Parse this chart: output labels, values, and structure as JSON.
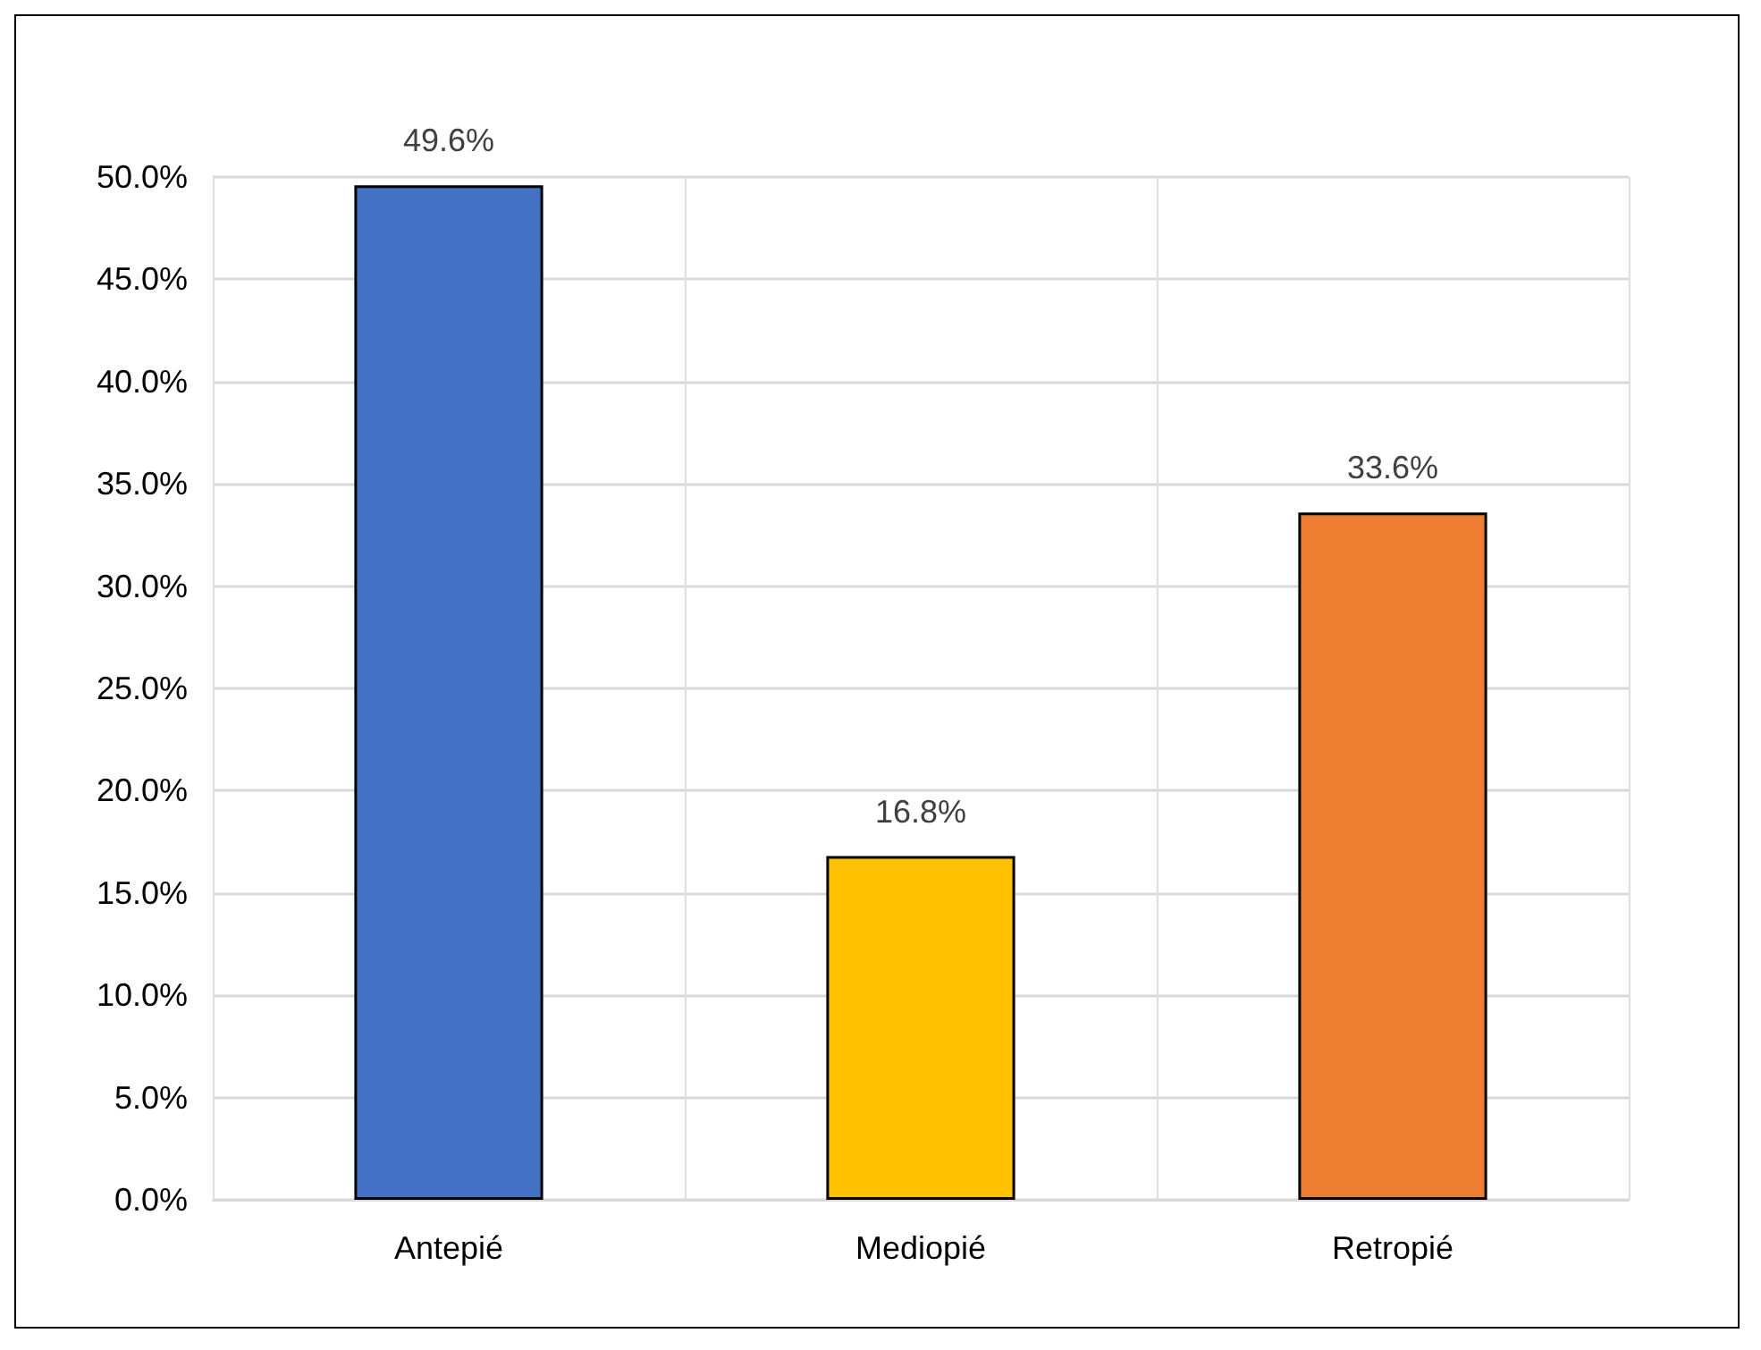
{
  "chart_data": {
    "type": "bar",
    "categories": [
      "Antepié",
      "Mediopié",
      "Retropié"
    ],
    "values": [
      49.6,
      16.8,
      33.6
    ],
    "colors": [
      "#4472c4",
      "#ffc000",
      "#ed7d31"
    ],
    "value_labels": [
      "49.6%",
      "16.8%",
      "33.6%"
    ],
    "ylim": [
      0,
      50
    ],
    "yticks": [
      {
        "value": 0,
        "label": "0.0%"
      },
      {
        "value": 5,
        "label": "5.0%"
      },
      {
        "value": 10,
        "label": "10.0%"
      },
      {
        "value": 15,
        "label": "15.0%"
      },
      {
        "value": 20,
        "label": "20.0%"
      },
      {
        "value": 25,
        "label": "25.0%"
      },
      {
        "value": 30,
        "label": "30.0%"
      },
      {
        "value": 35,
        "label": "35.0%"
      },
      {
        "value": 40,
        "label": "40.0%"
      },
      {
        "value": 45,
        "label": "45.0%"
      },
      {
        "value": 50,
        "label": "50.0%"
      }
    ],
    "grid": true
  }
}
